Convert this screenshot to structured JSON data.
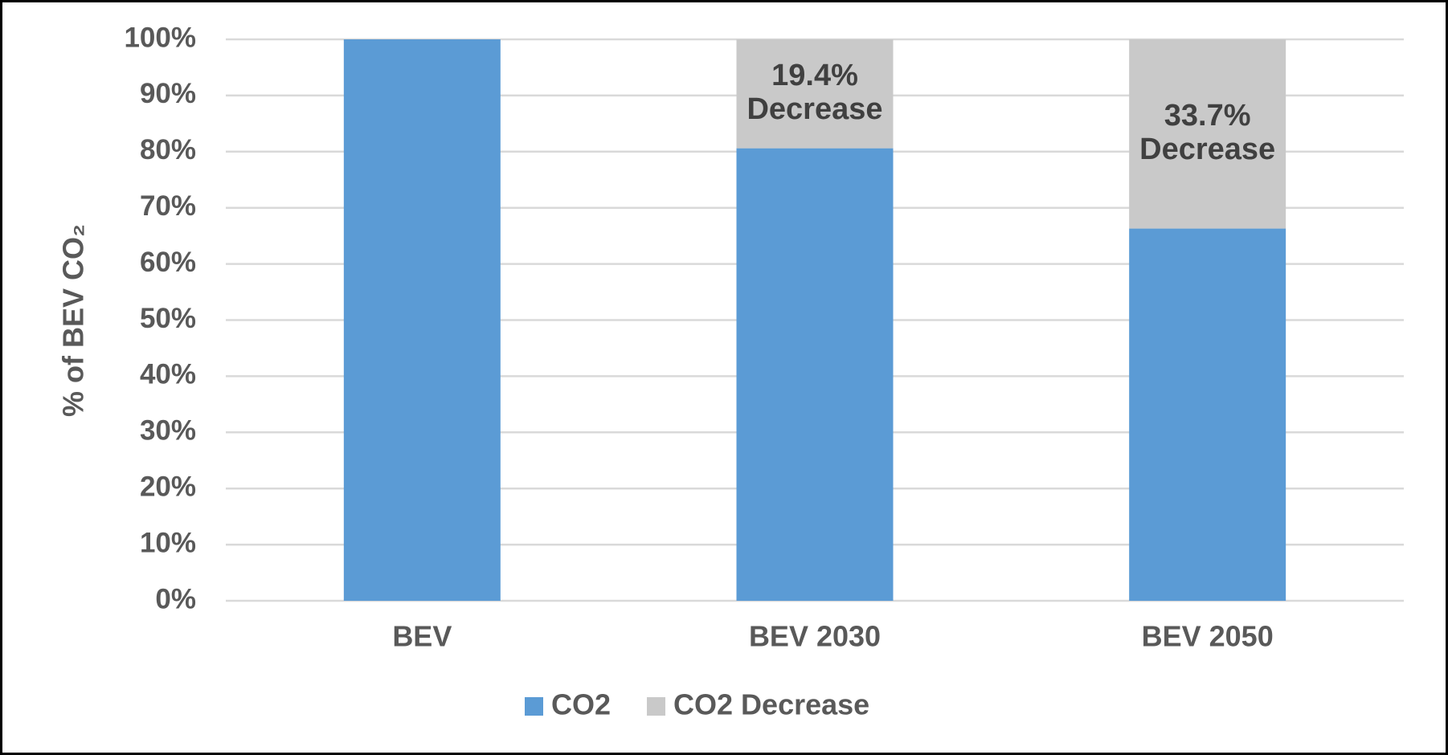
{
  "chart_data": {
    "type": "stacked_bar",
    "y_label": "% of BEV CO₂",
    "categories": [
      "BEV",
      "BEV 2030",
      "BEV 2050"
    ],
    "series": [
      {
        "name": "CO2",
        "color": "#5b9bd5",
        "values": [
          100,
          80.6,
          66.3
        ]
      },
      {
        "name": "CO2 Decrease",
        "color": "#c9c9c9",
        "values": [
          0,
          19.4,
          33.7
        ],
        "value_labels": [
          null,
          [
            "19.4%",
            "Decrease"
          ],
          [
            "33.7%",
            "Decrease"
          ]
        ]
      }
    ],
    "ylim": [
      0,
      100
    ],
    "yticks": [
      {
        "value": 0,
        "label": "0%"
      },
      {
        "value": 10,
        "label": "10%"
      },
      {
        "value": 20,
        "label": "20%"
      },
      {
        "value": 30,
        "label": "30%"
      },
      {
        "value": 40,
        "label": "40%"
      },
      {
        "value": 50,
        "label": "50%"
      },
      {
        "value": 60,
        "label": "60%"
      },
      {
        "value": 70,
        "label": "70%"
      },
      {
        "value": 80,
        "label": "80%"
      },
      {
        "value": 90,
        "label": "90%"
      },
      {
        "value": 100,
        "label": "100%"
      }
    ],
    "grid": true,
    "legend": "bottom"
  }
}
